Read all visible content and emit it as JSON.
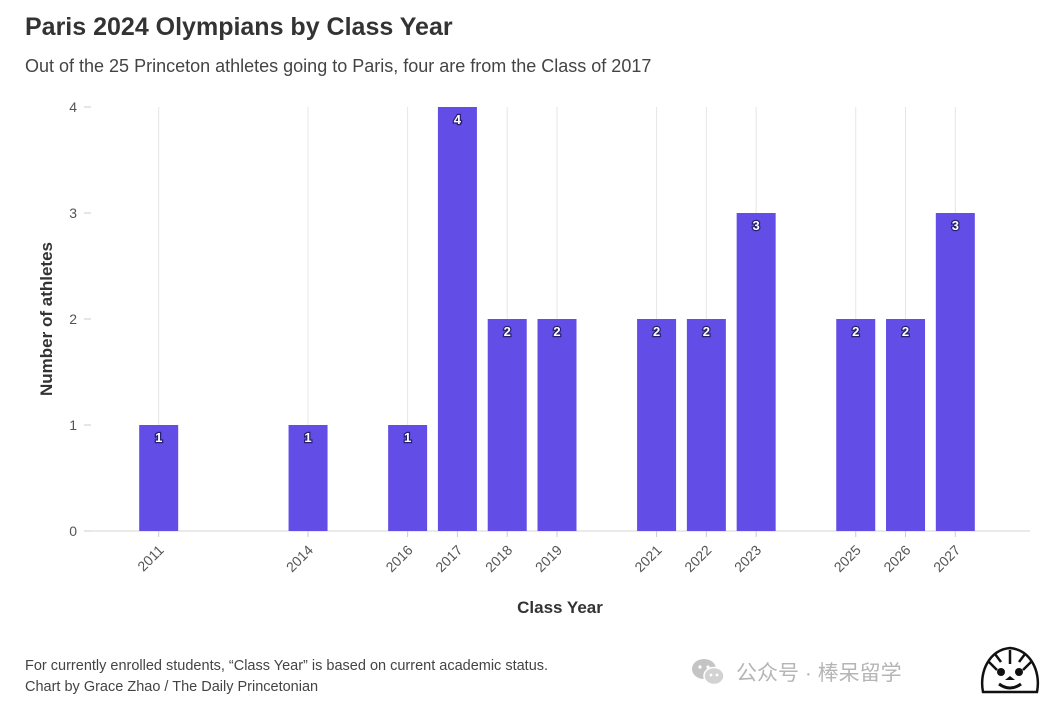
{
  "title": "Paris 2024 Olympians by Class Year",
  "subtitle": "Out of the 25 Princeton athletes going to Paris, four are from the Class of 2017",
  "footer": {
    "note": "For currently enrolled students, “Class Year” is based on current academic status.",
    "credit": "Chart by Grace Zhao / The Daily Princetonian"
  },
  "watermark": {
    "text": "公众号 · 棒呆留学",
    "icon": "wechat-icon"
  },
  "chart_data": {
    "type": "bar",
    "categories": [
      "2011",
      "2014",
      "2016",
      "2017",
      "2018",
      "2019",
      "2021",
      "2022",
      "2023",
      "2025",
      "2026",
      "2027"
    ],
    "values": [
      1,
      1,
      1,
      4,
      2,
      2,
      2,
      2,
      3,
      2,
      2,
      3
    ],
    "xlabel": "Class Year",
    "ylabel": "Number of athletes",
    "xlim": [
      2009.5,
      2028.5
    ],
    "ylim": [
      0,
      4
    ],
    "yticks": [
      0,
      1,
      2,
      3,
      4
    ],
    "bar_color": "#624ee6",
    "grid": "vertical",
    "legend": "none"
  }
}
